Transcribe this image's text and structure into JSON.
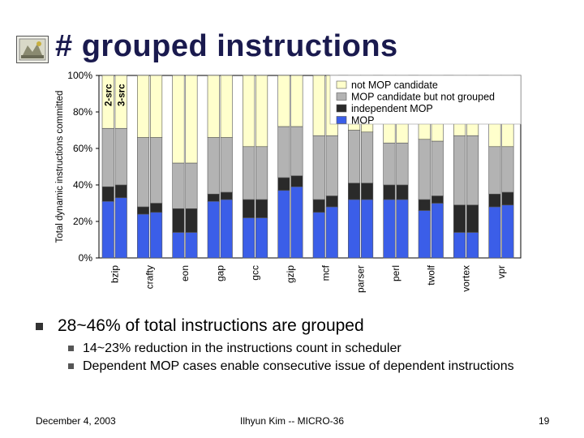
{
  "slide": {
    "title": "# grouped instructions",
    "bullet_main": "28~46% of total instructions are grouped",
    "sub_bullets": [
      "14~23% reduction in the instructions count in scheduler",
      "Dependent MOP cases enable consecutive issue of dependent instructions"
    ],
    "footer_left": "December 4, 2003",
    "footer_center": "Ilhyun Kim -- MICRO-36",
    "footer_right": "19",
    "logo_icon": "university-logo-icon"
  },
  "chart_data": {
    "type": "bar",
    "stacked": true,
    "ylabel": "Total dynamic instructions committed",
    "ylim": [
      0,
      100
    ],
    "yticks": [
      "0%",
      "20%",
      "40%",
      "60%",
      "80%",
      "100%"
    ],
    "categories": [
      "bzip",
      "crafty",
      "eon",
      "gap",
      "gcc",
      "gzip",
      "mcf",
      "parser",
      "perl",
      "twolf",
      "vortex",
      "vpr"
    ],
    "bar_variants": [
      "2-src",
      "3-src"
    ],
    "legend_position": "top-right",
    "series": [
      {
        "name": "MOP",
        "color": "#3b5ee8",
        "values_2src": [
          31,
          24,
          14,
          31,
          22,
          37,
          25,
          32,
          32,
          26,
          14,
          28
        ],
        "values_3src": [
          33,
          25,
          14,
          32,
          22,
          39,
          28,
          32,
          32,
          30,
          14,
          29
        ]
      },
      {
        "name": "independent MOP",
        "color": "#2a2a2a",
        "values_2src": [
          8,
          4,
          13,
          4,
          10,
          7,
          7,
          9,
          8,
          6,
          15,
          7
        ],
        "values_3src": [
          7,
          5,
          13,
          4,
          10,
          6,
          6,
          9,
          8,
          4,
          15,
          7
        ]
      },
      {
        "name": "MOP candidate but not grouped",
        "color": "#b3b3b3",
        "values_2src": [
          32,
          38,
          25,
          31,
          29,
          28,
          35,
          29,
          23,
          33,
          38,
          26
        ],
        "values_3src": [
          31,
          36,
          25,
          30,
          29,
          27,
          33,
          28,
          23,
          30,
          38,
          25
        ]
      },
      {
        "name": "not MOP candidate",
        "color": "#ffffcc",
        "values_2src": [
          29,
          34,
          48,
          34,
          39,
          28,
          33,
          30,
          37,
          35,
          33,
          39
        ],
        "values_3src": [
          29,
          34,
          48,
          34,
          39,
          28,
          33,
          31,
          37,
          36,
          33,
          39
        ]
      }
    ]
  }
}
